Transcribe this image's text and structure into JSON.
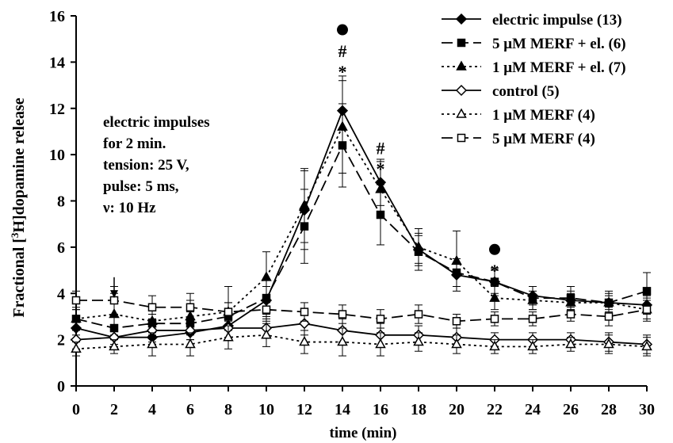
{
  "chart_data": {
    "type": "line",
    "xlabel": "time (min)",
    "ylabel_prefix": "Fractional [",
    "ylabel_sup": "3",
    "ylabel_suffix": "H]dopamine release",
    "xlim": [
      0,
      30
    ],
    "ylim": [
      0,
      16
    ],
    "xticks": [
      0,
      2,
      4,
      6,
      8,
      10,
      12,
      14,
      16,
      18,
      20,
      22,
      24,
      26,
      28,
      30
    ],
    "yticks": [
      0,
      2,
      4,
      6,
      8,
      10,
      12,
      14,
      16
    ],
    "x": [
      0,
      2,
      4,
      6,
      8,
      10,
      12,
      14,
      16,
      18,
      20,
      22,
      24,
      26,
      28,
      30
    ],
    "legend_position": "top-right",
    "series": [
      {
        "name": "electric impulse  (13)",
        "marker": "diamond-filled",
        "dash": "solid",
        "values": [
          2.5,
          2.1,
          2.1,
          2.3,
          2.6,
          3.7,
          7.6,
          11.9,
          8.8,
          5.9,
          4.8,
          4.5,
          3.9,
          3.7,
          3.6,
          3.5
        ],
        "errors": [
          0.3,
          0.3,
          0.3,
          0.3,
          0.5,
          0.6,
          1.7,
          1.5,
          1.0,
          0.6,
          0.5,
          0.5,
          0.4,
          0.4,
          0.3,
          0.4
        ]
      },
      {
        "name": "5 μM MERF + el. (6)",
        "marker": "square-filled",
        "dash": "long-dash",
        "values": [
          2.9,
          2.5,
          2.7,
          2.7,
          3.0,
          3.8,
          6.9,
          10.4,
          7.4,
          5.8,
          4.9,
          4.5,
          3.8,
          3.8,
          3.6,
          4.1
        ],
        "errors": [
          0.4,
          0.5,
          0.4,
          0.5,
          0.6,
          0.8,
          1.6,
          1.8,
          1.3,
          0.8,
          0.6,
          0.6,
          0.5,
          0.5,
          0.5,
          0.8
        ]
      },
      {
        "name": "1 μM MERF + el. (7)",
        "marker": "triangle-filled",
        "dash": "dotted",
        "values": [
          2.9,
          3.1,
          2.8,
          3.0,
          3.2,
          4.7,
          7.8,
          11.2,
          8.5,
          6.0,
          5.4,
          3.8,
          3.7,
          3.6,
          3.6,
          3.3
        ],
        "errors": [
          0.5,
          0.9,
          0.6,
          0.7,
          1.1,
          1.1,
          1.6,
          2.0,
          1.2,
          0.8,
          1.3,
          0.5,
          0.4,
          0.4,
          0.4,
          0.5
        ]
      },
      {
        "name": "control (5)",
        "marker": "diamond-open",
        "dash": "solid",
        "values": [
          2.0,
          2.1,
          2.4,
          2.4,
          2.5,
          2.5,
          2.7,
          2.4,
          2.2,
          2.2,
          2.1,
          2.0,
          2.0,
          2.0,
          1.9,
          1.8
        ],
        "errors": [
          0.4,
          0.4,
          0.5,
          0.4,
          0.5,
          0.4,
          0.5,
          0.5,
          0.5,
          0.4,
          0.4,
          0.3,
          0.3,
          0.3,
          0.4,
          0.4
        ]
      },
      {
        "name": "1 μM MERF (4)",
        "marker": "triangle-open",
        "dash": "dotted",
        "values": [
          1.6,
          1.7,
          1.8,
          1.8,
          2.1,
          2.2,
          1.9,
          1.9,
          1.8,
          1.9,
          1.8,
          1.7,
          1.7,
          1.8,
          1.8,
          1.7
        ],
        "errors": [
          0.3,
          0.3,
          0.5,
          0.5,
          0.5,
          0.5,
          0.5,
          0.6,
          0.5,
          0.4,
          0.4,
          0.3,
          0.3,
          0.3,
          0.4,
          0.4
        ]
      },
      {
        "name": "5 μM MERF (4)",
        "marker": "square-open",
        "dash": "long-dash",
        "values": [
          3.7,
          3.7,
          3.4,
          3.4,
          3.2,
          3.3,
          3.2,
          3.1,
          2.9,
          3.1,
          2.8,
          2.9,
          2.9,
          3.1,
          3.0,
          3.3
        ],
        "errors": [
          0.4,
          0.6,
          0.5,
          0.6,
          0.4,
          0.5,
          0.4,
          0.4,
          0.4,
          0.4,
          0.3,
          0.3,
          0.3,
          0.3,
          0.4,
          0.4
        ]
      }
    ],
    "annotation_text": [
      "electric impulses",
      "for 2 min.",
      "tension: 25 V,",
      "pulse: 5 ms,",
      "ν: 10 Hz"
    ],
    "stimulus_arrow": {
      "x": 2,
      "y_from": 4.7,
      "y_to": 3.8
    },
    "significance_marks": [
      {
        "x": 14,
        "y": 15.4,
        "symbol": "circle"
      },
      {
        "x": 14,
        "y": 14.5,
        "symbol": "#"
      },
      {
        "x": 14,
        "y": 13.6,
        "symbol": "*"
      },
      {
        "x": 16,
        "y": 10.3,
        "symbol": "#"
      },
      {
        "x": 16,
        "y": 9.4,
        "symbol": "*"
      },
      {
        "x": 22,
        "y": 5.9,
        "symbol": "circle"
      },
      {
        "x": 22,
        "y": 5.0,
        "symbol": "*"
      }
    ]
  }
}
